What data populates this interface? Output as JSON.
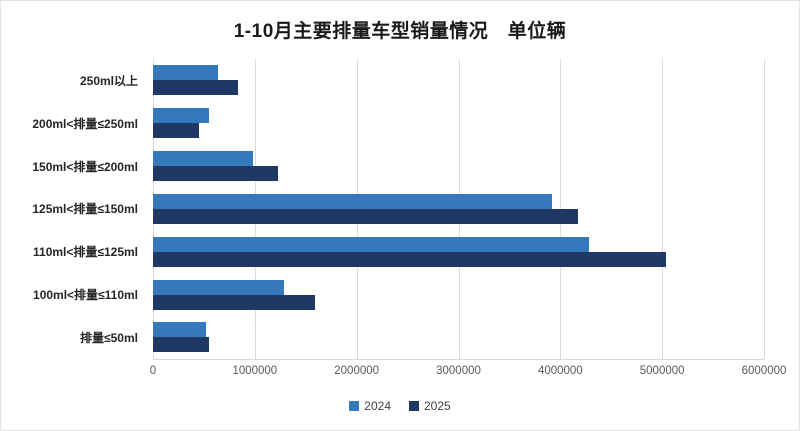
{
  "title": "1-10月主要排量车型销量情况　单位辆",
  "chart_data": {
    "type": "bar",
    "orientation": "horizontal",
    "title": "1-10月主要排量车型销量情况　单位辆",
    "categories": [
      "250ml以上",
      "200ml<排量≤250ml",
      "150ml<排量≤200ml",
      "125ml<排量≤150ml",
      "110ml<排量≤125ml",
      "100ml<排量≤110ml",
      "排量≤50ml"
    ],
    "series": [
      {
        "name": "2024",
        "color": "#3579BD",
        "values": [
          640000,
          550000,
          980000,
          3920000,
          4280000,
          1290000,
          520000
        ]
      },
      {
        "name": "2025",
        "color": "#1F3864",
        "values": [
          830000,
          450000,
          1230000,
          4170000,
          5040000,
          1590000,
          550000
        ]
      }
    ],
    "xlabel": "",
    "ylabel": "",
    "xlim": [
      0,
      6000000
    ],
    "x_ticks": [
      0,
      1000000,
      2000000,
      3000000,
      4000000,
      5000000,
      6000000
    ],
    "x_tick_labels": [
      "0",
      "1000000",
      "2000000",
      "3000000",
      "4000000",
      "5000000",
      "6000000"
    ],
    "grid": true,
    "legend_position": "bottom"
  },
  "colors": {
    "grid": "#D9D9D9",
    "axis_text": "#595959",
    "category_text": "#262626",
    "series_2024": "#3579BD",
    "series_2025": "#1F3864"
  }
}
